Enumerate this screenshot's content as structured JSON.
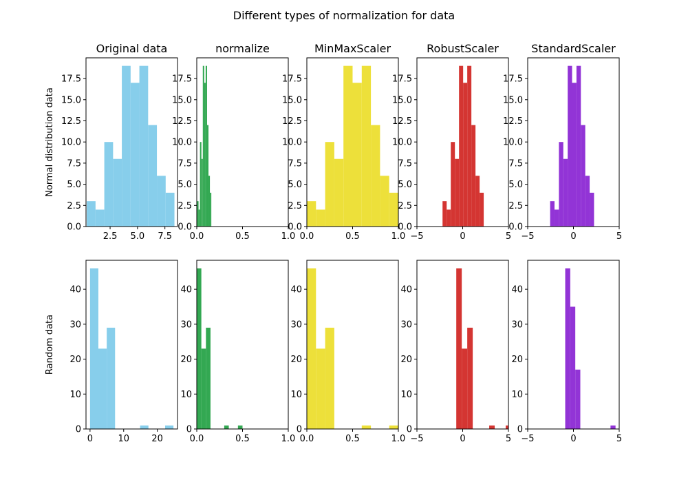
{
  "figure": {
    "title": "Different types of normalization for data"
  },
  "chart_data": [
    {
      "type": "histogram",
      "row": 0,
      "col": 0,
      "title": "Original data",
      "ylabel": "Normal distribution data",
      "color": "#87ceeb",
      "xlim": [
        0.3,
        8.65
      ],
      "ylim": [
        0,
        19.95
      ],
      "xticks": [
        {
          "v": 2.5,
          "label": "2.5"
        },
        {
          "v": 5.0,
          "label": "5.0"
        },
        {
          "v": 7.5,
          "label": "7.5"
        }
      ],
      "yticks": [
        {
          "v": 0,
          "label": "0.0"
        },
        {
          "v": 2.5,
          "label": "2.5"
        },
        {
          "v": 5,
          "label": "5.0"
        },
        {
          "v": 7.5,
          "label": "7.5"
        },
        {
          "v": 10,
          "label": "10.0"
        },
        {
          "v": 12.5,
          "label": "12.5"
        },
        {
          "v": 15,
          "label": "15.0"
        },
        {
          "v": 17.5,
          "label": "17.5"
        }
      ],
      "bins": [
        0.37,
        1.17,
        1.97,
        2.77,
        3.57,
        4.37,
        5.17,
        5.97,
        6.77,
        7.57,
        8.37
      ],
      "counts": [
        3,
        2,
        10,
        8,
        19,
        17,
        19,
        12,
        6,
        4
      ]
    },
    {
      "type": "histogram",
      "row": 0,
      "col": 1,
      "title": "normalize",
      "ylabel": "",
      "color": "#33a852",
      "xlim": [
        0,
        1
      ],
      "ylim": [
        0,
        19.95
      ],
      "xticks": [
        {
          "v": 0,
          "label": "0.0"
        },
        {
          "v": 0.5,
          "label": "0.5"
        },
        {
          "v": 1.0,
          "label": "1.0"
        }
      ],
      "yticks": [
        {
          "v": 0,
          "label": "0.0"
        },
        {
          "v": 2.5,
          "label": "2.5"
        },
        {
          "v": 5,
          "label": "5.0"
        },
        {
          "v": 7.5,
          "label": "7.5"
        },
        {
          "v": 10,
          "label": "10.0"
        },
        {
          "v": 12.5,
          "label": "12.5"
        },
        {
          "v": 15,
          "label": "15.0"
        },
        {
          "v": 17.5,
          "label": "17.5"
        }
      ],
      "bins": [
        0.004,
        0.0195,
        0.035,
        0.0505,
        0.066,
        0.0815,
        0.097,
        0.1125,
        0.128,
        0.1435,
        0.159
      ],
      "counts": [
        3,
        2,
        10,
        8,
        19,
        17,
        19,
        12,
        6,
        4
      ]
    },
    {
      "type": "histogram",
      "row": 0,
      "col": 2,
      "title": "MinMaxScaler",
      "ylabel": "",
      "color": "#ede03a",
      "xlim": [
        0,
        1
      ],
      "ylim": [
        0,
        19.95
      ],
      "xticks": [
        {
          "v": 0,
          "label": "0.0"
        },
        {
          "v": 0.5,
          "label": "0.5"
        },
        {
          "v": 1.0,
          "label": "1.0"
        }
      ],
      "yticks": [
        {
          "v": 0,
          "label": "0.0"
        },
        {
          "v": 2.5,
          "label": "2.5"
        },
        {
          "v": 5,
          "label": "5.0"
        },
        {
          "v": 7.5,
          "label": "7.5"
        },
        {
          "v": 10,
          "label": "10.0"
        },
        {
          "v": 12.5,
          "label": "12.5"
        },
        {
          "v": 15,
          "label": "15.0"
        },
        {
          "v": 17.5,
          "label": "17.5"
        }
      ],
      "bins": [
        0,
        0.1,
        0.2,
        0.3,
        0.4,
        0.5,
        0.6,
        0.7,
        0.8,
        0.9,
        1.0
      ],
      "counts": [
        3,
        2,
        10,
        8,
        19,
        17,
        19,
        12,
        6,
        4
      ]
    },
    {
      "type": "histogram",
      "row": 0,
      "col": 3,
      "title": "RobustScaler",
      "ylabel": "",
      "color": "#d43532",
      "xlim": [
        -5,
        5
      ],
      "ylim": [
        0,
        19.95
      ],
      "xticks": [
        {
          "v": -5,
          "label": "−5"
        },
        {
          "v": 0,
          "label": "0"
        },
        {
          "v": 5,
          "label": "5"
        }
      ],
      "yticks": [
        {
          "v": 0,
          "label": "0.0"
        },
        {
          "v": 2.5,
          "label": "2.5"
        },
        {
          "v": 5,
          "label": "5.0"
        },
        {
          "v": 7.5,
          "label": "7.5"
        },
        {
          "v": 10,
          "label": "10.0"
        },
        {
          "v": 12.5,
          "label": "12.5"
        },
        {
          "v": 15,
          "label": "15.0"
        },
        {
          "v": 17.5,
          "label": "17.5"
        }
      ],
      "bins": [
        -2.2,
        -1.75,
        -1.3,
        -0.85,
        -0.4,
        0.05,
        0.5,
        0.95,
        1.4,
        1.85,
        2.3
      ],
      "counts": [
        3,
        2,
        10,
        8,
        19,
        17,
        19,
        12,
        6,
        4
      ]
    },
    {
      "type": "histogram",
      "row": 0,
      "col": 4,
      "title": "StandardScaler",
      "ylabel": "",
      "color": "#9234d6",
      "xlim": [
        -5,
        5
      ],
      "ylim": [
        0,
        19.95
      ],
      "xticks": [
        {
          "v": -5,
          "label": "−5"
        },
        {
          "v": 0,
          "label": "0"
        },
        {
          "v": 5,
          "label": "5"
        }
      ],
      "yticks": [
        {
          "v": 0,
          "label": "0.0"
        },
        {
          "v": 2.5,
          "label": "2.5"
        },
        {
          "v": 5,
          "label": "5.0"
        },
        {
          "v": 7.5,
          "label": "7.5"
        },
        {
          "v": 10,
          "label": "10.0"
        },
        {
          "v": 12.5,
          "label": "12.5"
        },
        {
          "v": 15,
          "label": "15.0"
        },
        {
          "v": 17.5,
          "label": "17.5"
        }
      ],
      "bins": [
        -2.55,
        -2.07,
        -1.59,
        -1.11,
        -0.63,
        -0.15,
        0.33,
        0.81,
        1.29,
        1.77,
        2.25
      ],
      "counts": [
        3,
        2,
        10,
        8,
        19,
        17,
        19,
        12,
        6,
        4
      ]
    },
    {
      "type": "histogram",
      "row": 1,
      "col": 0,
      "title": "",
      "ylabel": "Random data",
      "color": "#87ceeb",
      "xlim": [
        -1.2,
        26.0
      ],
      "ylim": [
        0,
        48.3
      ],
      "xticks": [
        {
          "v": 0,
          "label": "0"
        },
        {
          "v": 10,
          "label": "10"
        },
        {
          "v": 20,
          "label": "20"
        }
      ],
      "yticks": [
        {
          "v": 0,
          "label": "0"
        },
        {
          "v": 10,
          "label": "10"
        },
        {
          "v": 20,
          "label": "20"
        },
        {
          "v": 30,
          "label": "30"
        },
        {
          "v": 40,
          "label": "40"
        }
      ],
      "bins": [
        0.0,
        2.48,
        4.96,
        7.44,
        9.92,
        12.4,
        14.88,
        17.36,
        19.84,
        22.32,
        24.8
      ],
      "counts": [
        46,
        23,
        29,
        0,
        0,
        0,
        1,
        0,
        0,
        1
      ]
    },
    {
      "type": "histogram",
      "row": 1,
      "col": 1,
      "title": "",
      "ylabel": "",
      "color": "#33a852",
      "xlim": [
        0,
        1
      ],
      "ylim": [
        0,
        48.3
      ],
      "xticks": [
        {
          "v": 0,
          "label": "0.0"
        },
        {
          "v": 0.5,
          "label": "0.5"
        },
        {
          "v": 1.0,
          "label": "1.0"
        }
      ],
      "yticks": [
        {
          "v": 0,
          "label": "0"
        },
        {
          "v": 10,
          "label": "10"
        },
        {
          "v": 20,
          "label": "20"
        },
        {
          "v": 30,
          "label": "30"
        },
        {
          "v": 40,
          "label": "40"
        }
      ],
      "bins": [
        0.0,
        0.05,
        0.1,
        0.15,
        0.2,
        0.25,
        0.3,
        0.35,
        0.4,
        0.45,
        0.5,
        0.55
      ],
      "counts": [
        46,
        23,
        29,
        0,
        0,
        0,
        1,
        0,
        0,
        1,
        0
      ]
    },
    {
      "type": "histogram",
      "row": 1,
      "col": 2,
      "title": "",
      "ylabel": "",
      "color": "#ede03a",
      "xlim": [
        0,
        1
      ],
      "ylim": [
        0,
        48.3
      ],
      "xticks": [
        {
          "v": 0,
          "label": "0.0"
        },
        {
          "v": 0.5,
          "label": "0.5"
        },
        {
          "v": 1.0,
          "label": "1.0"
        }
      ],
      "yticks": [
        {
          "v": 0,
          "label": "0"
        },
        {
          "v": 10,
          "label": "10"
        },
        {
          "v": 20,
          "label": "20"
        },
        {
          "v": 30,
          "label": "30"
        },
        {
          "v": 40,
          "label": "40"
        }
      ],
      "bins": [
        0,
        0.1,
        0.2,
        0.3,
        0.4,
        0.5,
        0.6,
        0.7,
        0.8,
        0.9,
        1.0
      ],
      "counts": [
        46,
        23,
        29,
        0,
        0,
        0,
        1,
        0,
        0,
        1
      ]
    },
    {
      "type": "histogram",
      "row": 1,
      "col": 3,
      "title": "",
      "ylabel": "",
      "color": "#d43532",
      "xlim": [
        -5,
        5
      ],
      "ylim": [
        0,
        48.3
      ],
      "xticks": [
        {
          "v": -5,
          "label": "−5"
        },
        {
          "v": 0,
          "label": "0"
        },
        {
          "v": 5,
          "label": "5"
        }
      ],
      "yticks": [
        {
          "v": 0,
          "label": "0"
        },
        {
          "v": 10,
          "label": "10"
        },
        {
          "v": 20,
          "label": "20"
        },
        {
          "v": 30,
          "label": "30"
        },
        {
          "v": 40,
          "label": "40"
        }
      ],
      "bins": [
        -0.7,
        -0.1,
        0.5,
        1.1,
        1.7,
        2.3,
        2.9,
        3.5,
        4.1,
        4.7,
        5.3
      ],
      "counts": [
        46,
        23,
        29,
        0,
        0,
        0,
        1,
        0,
        0,
        1
      ]
    },
    {
      "type": "histogram",
      "row": 1,
      "col": 4,
      "title": "",
      "ylabel": "",
      "color": "#9234d6",
      "xlim": [
        -5,
        5
      ],
      "ylim": [
        0,
        48.3
      ],
      "xticks": [
        {
          "v": -5,
          "label": "−5"
        },
        {
          "v": 0,
          "label": "0"
        },
        {
          "v": 5,
          "label": "5"
        }
      ],
      "yticks": [
        {
          "v": 0,
          "label": "0"
        },
        {
          "v": 10,
          "label": "10"
        },
        {
          "v": 20,
          "label": "20"
        },
        {
          "v": 30,
          "label": "30"
        },
        {
          "v": 40,
          "label": "40"
        }
      ],
      "bins": [
        -0.9,
        -0.35,
        0.2,
        0.75,
        1.3,
        1.85,
        2.4,
        2.95,
        3.5,
        4.05,
        4.6
      ],
      "counts": [
        46,
        35,
        17,
        0,
        0,
        0,
        0,
        0,
        0,
        1
      ]
    }
  ]
}
